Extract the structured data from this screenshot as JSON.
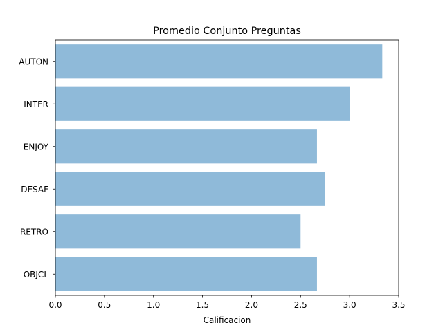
{
  "chart_data": {
    "type": "bar",
    "orientation": "horizontal",
    "title": "Promedio Conjunto Preguntas",
    "xlabel": "Calificacion",
    "ylabel": "",
    "categories": [
      "AUTON",
      "INTER",
      "ENJOY",
      "DESAF",
      "RETRO",
      "OBJCL"
    ],
    "values": [
      3.333,
      3.0,
      2.667,
      2.75,
      2.5,
      2.667
    ],
    "xlim": [
      0,
      3.5
    ],
    "xticks": [
      "0.0",
      "0.5",
      "1.0",
      "1.5",
      "2.0",
      "2.5",
      "3.0",
      "3.5"
    ],
    "grid": false,
    "legend": "none",
    "colors": {
      "bar": "#8fbad9",
      "axis": "#000000"
    }
  }
}
